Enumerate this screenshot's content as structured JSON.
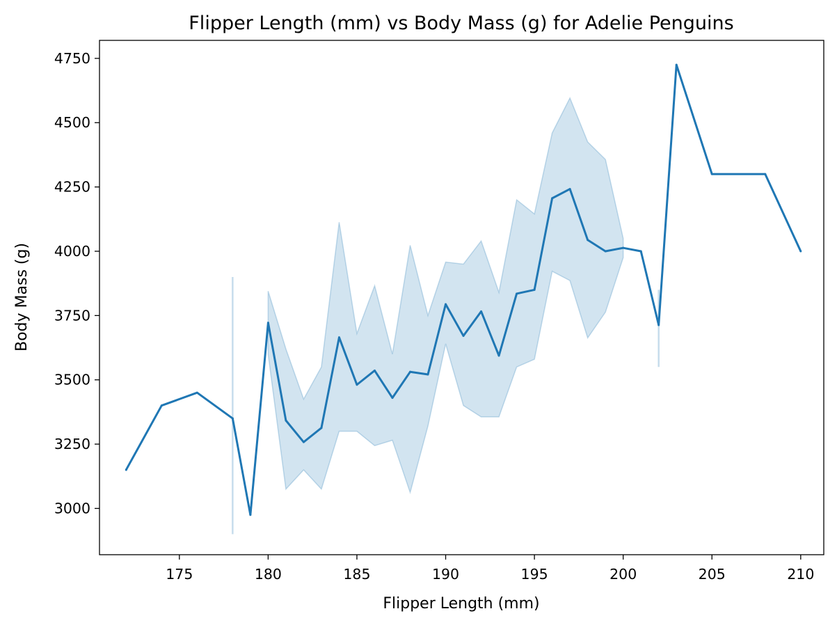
{
  "chart_data": {
    "type": "line",
    "title": "Flipper Length (mm) vs Body Mass (g) for Adelie Penguins",
    "xlabel": "Flipper Length (mm)",
    "ylabel": "Body Mass (g)",
    "xlim": [
      170.5,
      211.3
    ],
    "ylim": [
      2820,
      4820
    ],
    "xticks": [
      175,
      180,
      185,
      190,
      195,
      200,
      205,
      210
    ],
    "yticks": [
      3000,
      3250,
      3500,
      3750,
      4000,
      4250,
      4500,
      4750
    ],
    "grid": false,
    "colors": {
      "line": "#1f77b4",
      "band": "#1f77b4",
      "band_opacity": 0.2
    },
    "series": [
      {
        "x": [
          172,
          174,
          176,
          178,
          179,
          180,
          181,
          182,
          183,
          184,
          185,
          186,
          187,
          188,
          189,
          190,
          191,
          192,
          193,
          194,
          195,
          196,
          197,
          198,
          199,
          200,
          201,
          202,
          203,
          205,
          208,
          210
        ],
        "y": [
          3150,
          3400,
          3450,
          3350,
          2975,
          3722,
          3342,
          3258,
          3313,
          3665,
          3481,
          3536,
          3430,
          3531,
          3521,
          3794,
          3671,
          3766,
          3594,
          3835,
          3850,
          4206,
          4242,
          4044,
          4000,
          4013,
          4000,
          3713,
          4725,
          4300,
          4300,
          4000
        ]
      }
    ],
    "confidence_band": {
      "x": [
        178,
        180,
        181,
        182,
        183,
        184,
        185,
        186,
        187,
        188,
        189,
        190,
        191,
        192,
        193,
        194,
        195,
        196,
        197,
        198,
        199,
        200,
        202
      ],
      "lower": [
        2900,
        3600,
        3075,
        3150,
        3075,
        3300,
        3300,
        3244,
        3265,
        3062,
        3320,
        3640,
        3400,
        3356,
        3356,
        3550,
        3580,
        3922,
        3886,
        3663,
        3763,
        3975,
        3550
      ],
      "upper": [
        3900,
        3845,
        3620,
        3425,
        3550,
        4113,
        3680,
        3866,
        3600,
        4023,
        3750,
        3958,
        3950,
        4040,
        3840,
        4200,
        4145,
        4460,
        4596,
        4425,
        4357,
        4050,
        3850
      ]
    }
  }
}
